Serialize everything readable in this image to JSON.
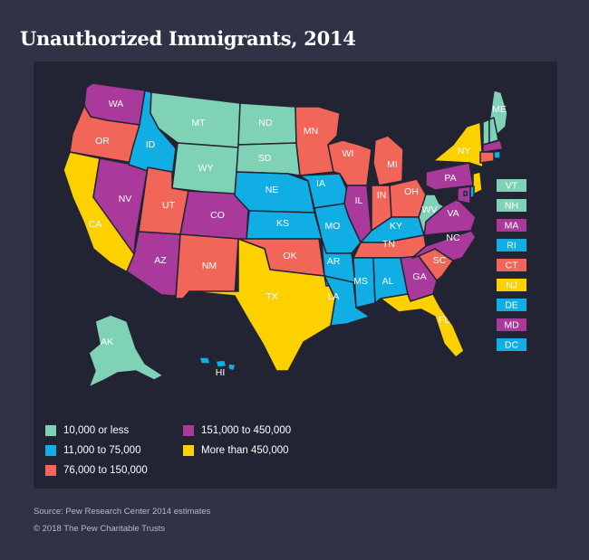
{
  "title": "Unauthorized Immigrants, 2014",
  "colors": {
    "cat1": "#7fd2b6",
    "cat2": "#10aee4",
    "cat3": "#f2665a",
    "cat4": "#a9399b",
    "cat5": "#fdd000"
  },
  "legend": [
    {
      "label": "10,000 or less",
      "color_key": "cat1"
    },
    {
      "label": "11,000 to 75,000",
      "color_key": "cat2"
    },
    {
      "label": "76,000 to 150,000",
      "color_key": "cat3"
    },
    {
      "label": "151,000 to 450,000",
      "color_key": "cat4"
    },
    {
      "label": "More than 450,000",
      "color_key": "cat5"
    }
  ],
  "states": [
    {
      "abbr": "WA",
      "category": 4
    },
    {
      "abbr": "OR",
      "category": 3
    },
    {
      "abbr": "CA",
      "category": 5
    },
    {
      "abbr": "NV",
      "category": 4
    },
    {
      "abbr": "ID",
      "category": 2
    },
    {
      "abbr": "MT",
      "category": 1
    },
    {
      "abbr": "WY",
      "category": 1
    },
    {
      "abbr": "UT",
      "category": 3
    },
    {
      "abbr": "AZ",
      "category": 4
    },
    {
      "abbr": "CO",
      "category": 4
    },
    {
      "abbr": "NM",
      "category": 3
    },
    {
      "abbr": "ND",
      "category": 1
    },
    {
      "abbr": "SD",
      "category": 1
    },
    {
      "abbr": "NE",
      "category": 2
    },
    {
      "abbr": "KS",
      "category": 2
    },
    {
      "abbr": "OK",
      "category": 3
    },
    {
      "abbr": "TX",
      "category": 5
    },
    {
      "abbr": "MN",
      "category": 3
    },
    {
      "abbr": "IA",
      "category": 2
    },
    {
      "abbr": "MO",
      "category": 2
    },
    {
      "abbr": "AR",
      "category": 2
    },
    {
      "abbr": "LA",
      "category": 2
    },
    {
      "abbr": "WI",
      "category": 3
    },
    {
      "abbr": "IL",
      "category": 4
    },
    {
      "abbr": "MI",
      "category": 3
    },
    {
      "abbr": "IN",
      "category": 3
    },
    {
      "abbr": "OH",
      "category": 3
    },
    {
      "abbr": "KY",
      "category": 2
    },
    {
      "abbr": "TN",
      "category": 3
    },
    {
      "abbr": "MS",
      "category": 2
    },
    {
      "abbr": "AL",
      "category": 2
    },
    {
      "abbr": "GA",
      "category": 4
    },
    {
      "abbr": "FL",
      "category": 5
    },
    {
      "abbr": "SC",
      "category": 3
    },
    {
      "abbr": "NC",
      "category": 4
    },
    {
      "abbr": "VA",
      "category": 4
    },
    {
      "abbr": "WV",
      "category": 1
    },
    {
      "abbr": "PA",
      "category": 4
    },
    {
      "abbr": "NY",
      "category": 5
    },
    {
      "abbr": "ME",
      "category": 1
    },
    {
      "abbr": "AK",
      "category": 1
    },
    {
      "abbr": "HI",
      "category": 2
    }
  ],
  "small_states": [
    {
      "abbr": "VT",
      "category": 1
    },
    {
      "abbr": "NH",
      "category": 1
    },
    {
      "abbr": "MA",
      "category": 4
    },
    {
      "abbr": "RI",
      "category": 2
    },
    {
      "abbr": "CT",
      "category": 3
    },
    {
      "abbr": "NJ",
      "category": 5
    },
    {
      "abbr": "DE",
      "category": 2
    },
    {
      "abbr": "MD",
      "category": 4
    },
    {
      "abbr": "DC",
      "category": 2
    }
  ],
  "source": "Source: Pew Research Center 2014 estimates",
  "copyright": "© 2018 The Pew Charitable Trusts"
}
